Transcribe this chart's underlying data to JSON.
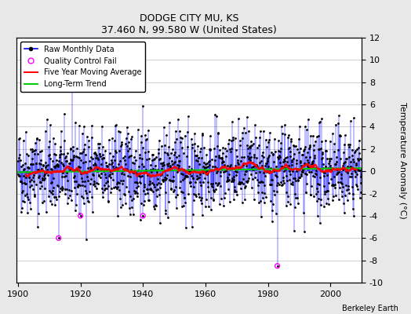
{
  "title": "DODGE CITY MU, KS",
  "subtitle": "37.460 N, 99.580 W (United States)",
  "ylabel": "Temperature Anomaly (°C)",
  "credit": "Berkeley Earth",
  "year_start": 1900,
  "year_end": 2011,
  "ylim": [
    -10,
    12
  ],
  "yticks": [
    -10,
    -8,
    -6,
    -4,
    -2,
    0,
    2,
    4,
    6,
    8,
    10,
    12
  ],
  "xticks": [
    1900,
    1920,
    1940,
    1960,
    1980,
    2000
  ],
  "bg_color": "#e8e8e8",
  "plot_bg_color": "#ffffff",
  "grid_color": "#d0d0d0",
  "line_color_raw": "#0000ff",
  "line_color_moving_avg": "#ff0000",
  "line_color_trend": "#00cc00",
  "marker_color": "#000000",
  "qc_fail_color": "#ff00ff",
  "seed": 42
}
